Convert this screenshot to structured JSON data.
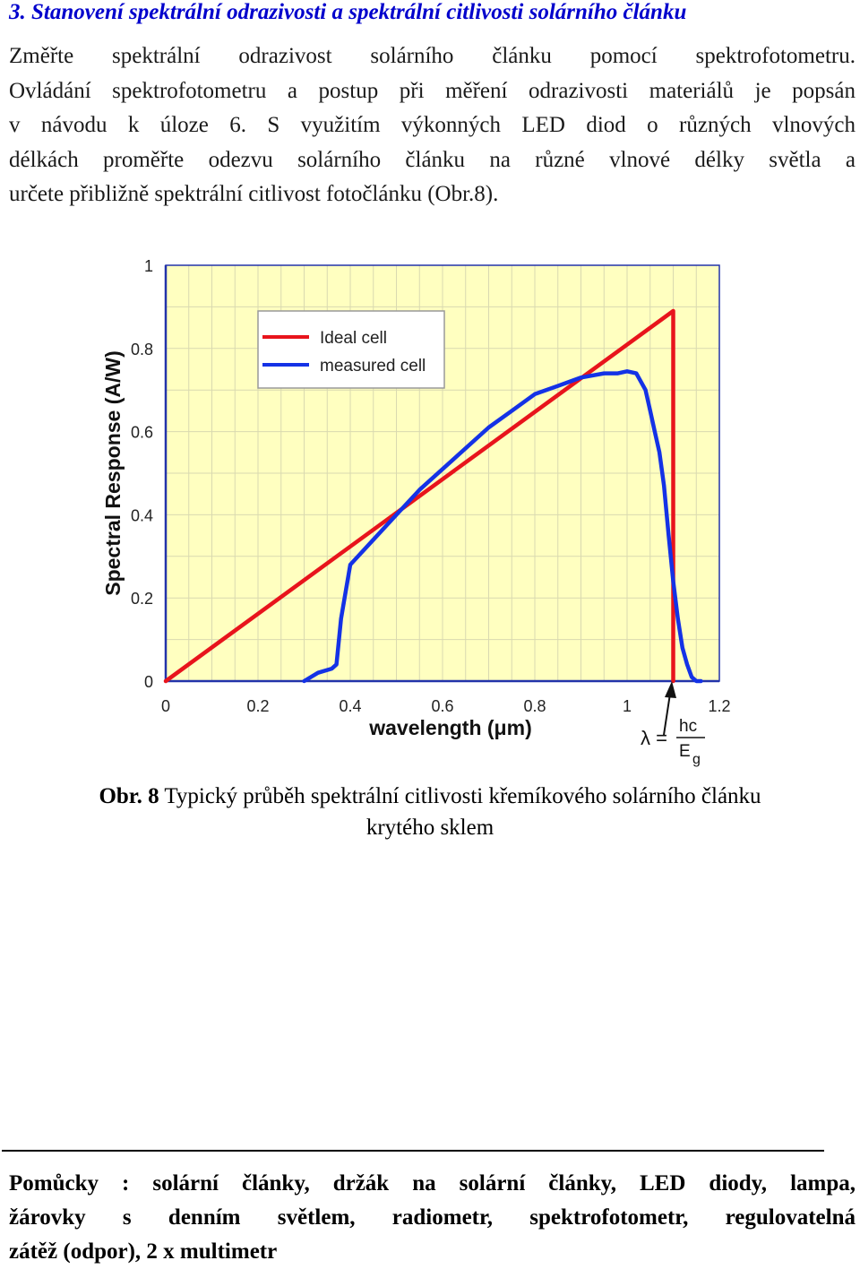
{
  "heading": "3. Stanovení spektrální odrazivosti a spektrální citlivosti solárního článku",
  "paragraph_lines": [
    "Změřte spektrální odrazivost solárního článku pomocí spektrofotometru.",
    "Ovládání spektrofotometru a postup při měření odrazivosti materiálů je popsán",
    "v návodu k úloze 6. S využitím výkonných LED diod o různých vlnových",
    "délkách proměřte odezvu solárního článku na různé vlnové délky světla a",
    "určete přibližně spektrální citlivost fotočlánku (Obr.8)."
  ],
  "chart_data": {
    "type": "line",
    "title": "",
    "xlabel": "wavelength (μm)",
    "ylabel": "Spectral Response (A/W)",
    "xlim": [
      0,
      1.2
    ],
    "ylim": [
      0,
      1
    ],
    "xticks": [
      "0",
      "0.2",
      "0.4",
      "0.6",
      "0.8",
      "1",
      "1.2"
    ],
    "yticks": [
      "0",
      "0.2",
      "0.4",
      "0.6",
      "0.8",
      "1"
    ],
    "grid": true,
    "legend_position": "top-left",
    "background_color": "#ffffc0",
    "series": [
      {
        "name": "Ideal cell",
        "color": "#e8141c",
        "x": [
          0,
          1.1,
          1.1
        ],
        "y": [
          0,
          0.89,
          0
        ]
      },
      {
        "name": "measured cell",
        "color": "#1432e6",
        "x": [
          0.3,
          0.33,
          0.36,
          0.37,
          0.38,
          0.4,
          0.45,
          0.5,
          0.55,
          0.6,
          0.65,
          0.7,
          0.75,
          0.8,
          0.85,
          0.9,
          0.95,
          0.98,
          1.0,
          1.02,
          1.04,
          1.05,
          1.06,
          1.07,
          1.08,
          1.09,
          1.1,
          1.11,
          1.12,
          1.13,
          1.14,
          1.15,
          1.16
        ],
        "y": [
          0.0,
          0.02,
          0.03,
          0.04,
          0.15,
          0.28,
          0.34,
          0.4,
          0.46,
          0.51,
          0.56,
          0.61,
          0.65,
          0.69,
          0.71,
          0.73,
          0.74,
          0.74,
          0.745,
          0.74,
          0.7,
          0.65,
          0.6,
          0.55,
          0.47,
          0.35,
          0.24,
          0.15,
          0.08,
          0.04,
          0.01,
          0.0,
          0.0
        ]
      }
    ],
    "annotation": {
      "lambda": "λ =",
      "numerator": "hc",
      "denominator": "E",
      "subscript": "g",
      "x": 1.1
    }
  },
  "caption": {
    "label": "Obr. 8",
    "text": " Typický průběh spektrální citlivosti křemíkového solárního článku",
    "line2": "krytého sklem"
  },
  "tools_lines": [
    "Pomůcky : solární články, držák na solární články, LED diody, lampa,",
    "žárovky s denním světlem, radiometr, spektrofotometr, regulovatelná",
    "zátěž (odpor), 2 x multimetr"
  ]
}
